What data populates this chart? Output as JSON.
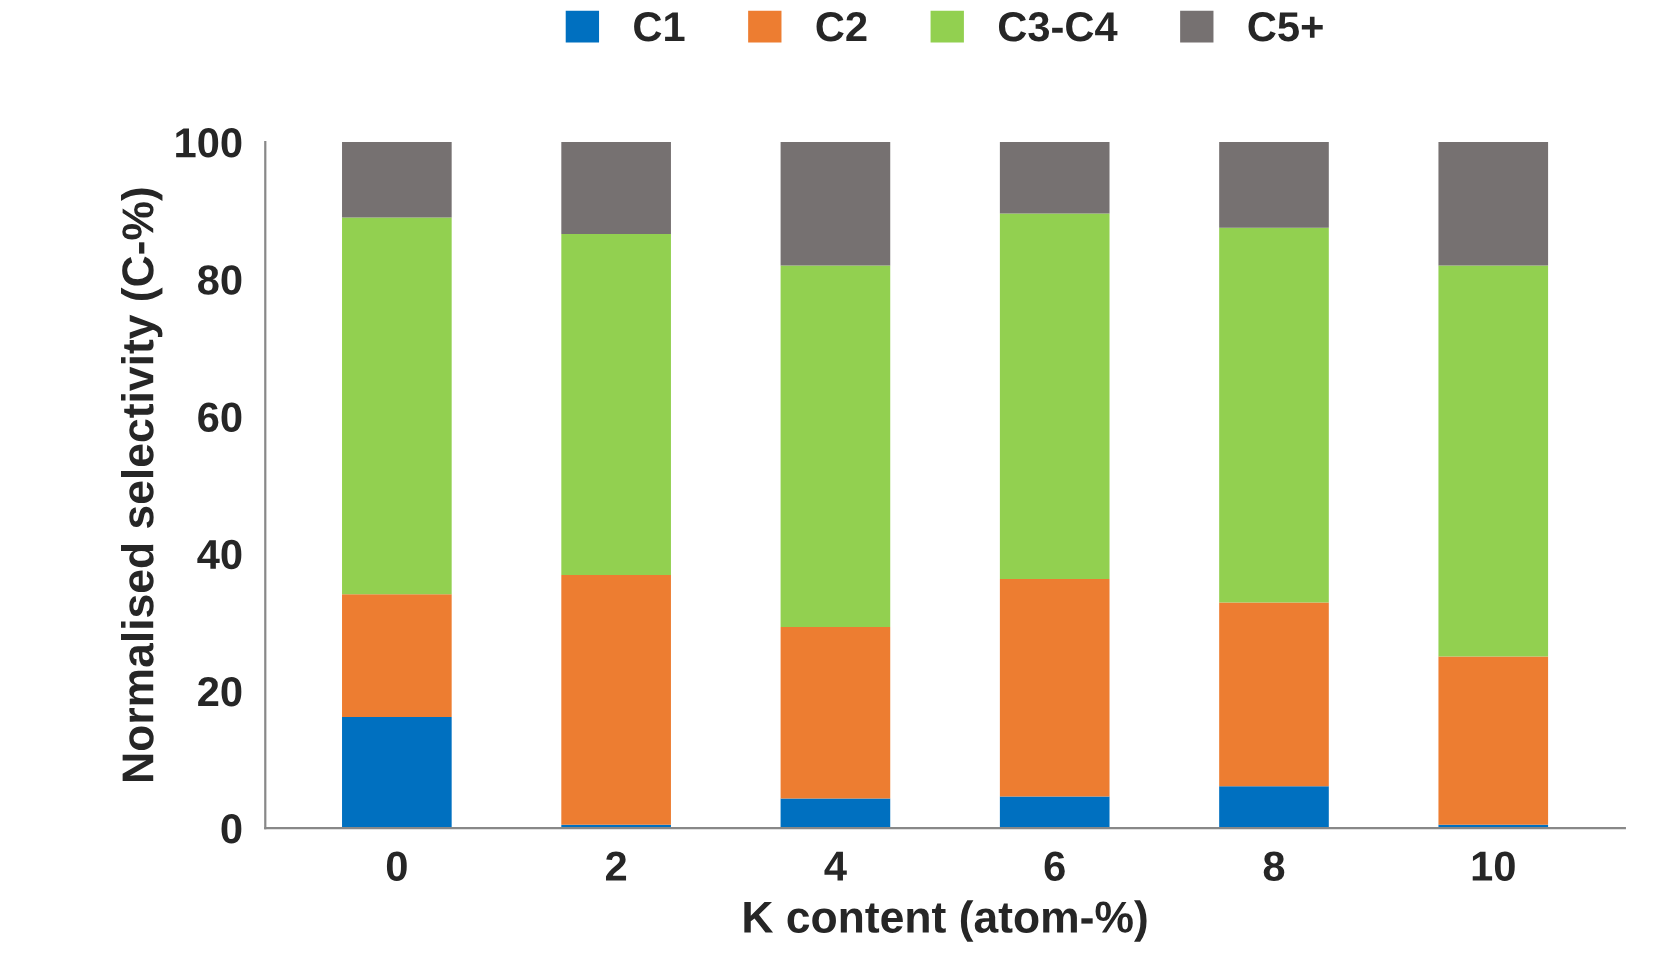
{
  "chart_data": {
    "type": "bar",
    "stacked": true,
    "xlabel": "K content (atom-%)",
    "ylabel": "Normalised selectivity (C-%)",
    "categories": [
      "0",
      "2",
      "4",
      "6",
      "8",
      "10"
    ],
    "series": [
      {
        "name": "C1",
        "color": "#0070c0",
        "values": [
          16.2,
          0.5,
          4.3,
          4.6,
          6.1,
          0.5
        ]
      },
      {
        "name": "C2",
        "color": "#ed7d31",
        "values": [
          17.9,
          36.4,
          25.0,
          31.7,
          26.8,
          24.5
        ]
      },
      {
        "name": "C3-C4",
        "color": "#92d050",
        "values": [
          54.9,
          49.7,
          52.7,
          53.3,
          54.6,
          57.0
        ]
      },
      {
        "name": "C5+",
        "color": "#767171",
        "values": [
          11.0,
          13.4,
          18.0,
          10.4,
          12.5,
          18.0
        ]
      }
    ],
    "ylim": [
      0,
      100
    ],
    "yticks": [
      0,
      20,
      40,
      60,
      80,
      100
    ],
    "grid": false,
    "legend": "top"
  }
}
